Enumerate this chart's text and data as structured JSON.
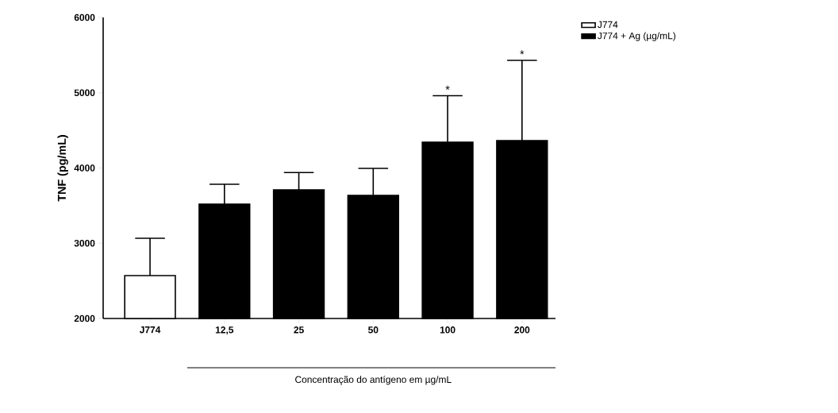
{
  "chart_data": {
    "type": "bar",
    "ylabel": "TNF (pg/mL)",
    "xlabel": "Concentração do antígeno em µg/mL",
    "categories": [
      "J774",
      "12,5",
      "25",
      "50",
      "100",
      "200"
    ],
    "series": [
      {
        "name": "J774",
        "color": "#ffffff",
        "values": [
          2570,
          null,
          null,
          null,
          null,
          null
        ],
        "errors": [
          [
            2570,
            3066
          ],
          null,
          null,
          null,
          null,
          null
        ]
      },
      {
        "name": "J774 + Ag (µg/mL)",
        "color": "#000000",
        "values": [
          null,
          3520,
          3710,
          3636,
          4343,
          4364
        ],
        "errors": [
          null,
          [
            3520,
            3784
          ],
          [
            3710,
            3940
          ],
          [
            3636,
            3995
          ],
          [
            4343,
            4960
          ],
          [
            4364,
            5430
          ]
        ]
      }
    ],
    "ylim": [
      2000,
      6000
    ],
    "yticks": [
      2000,
      3000,
      4000,
      5000,
      6000
    ],
    "grid": false,
    "legend": "top right",
    "annotations": [
      {
        "text": "*",
        "x": "100",
        "y": 4960
      },
      {
        "text": "*",
        "x": "200",
        "y": 5430
      }
    ]
  }
}
